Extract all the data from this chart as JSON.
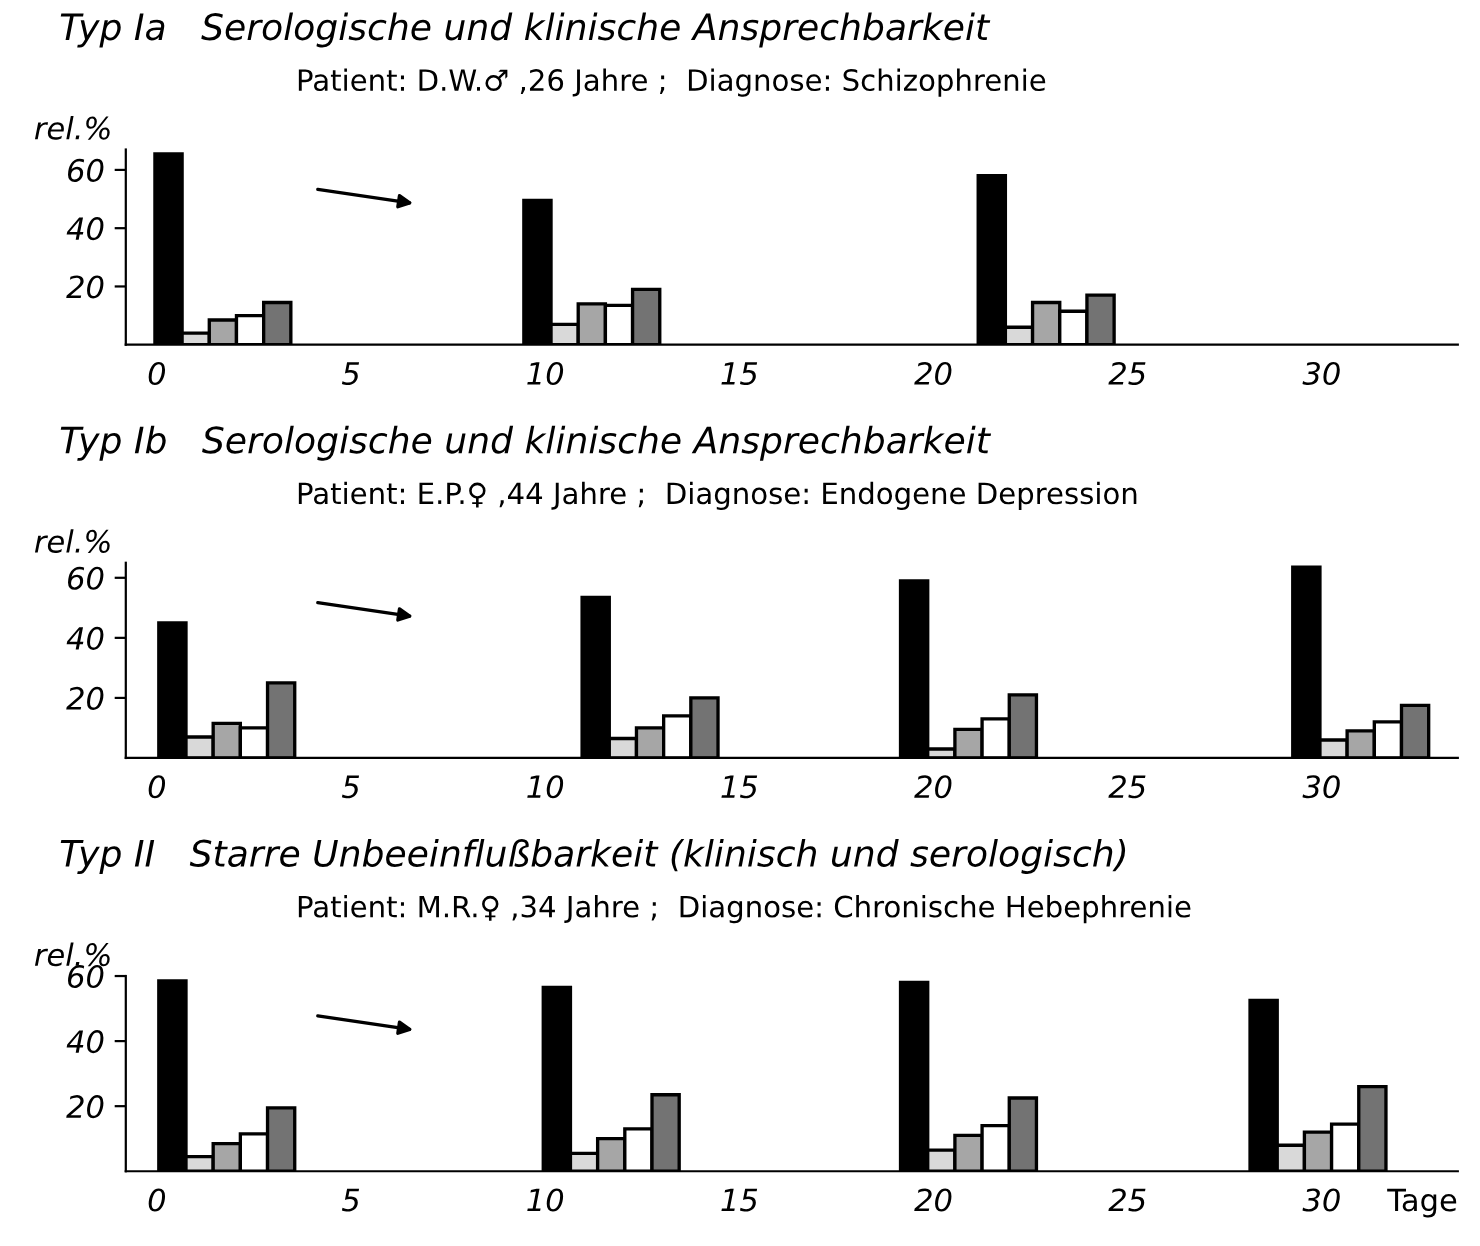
{
  "chart_data": [
    {
      "type": "bar",
      "title": "Typ Ia   Serologische und klinische Ansprechbarkeit",
      "subtitle": "Patient: D.W.♂ ,26 Jahre ;  Diagnose: Schizophrenie",
      "ylabel": "rel.%",
      "xlim": [
        -0.8,
        33.5
      ],
      "ylim": [
        0,
        67
      ],
      "xticks": [
        0,
        5,
        10,
        15,
        20,
        25,
        30
      ],
      "yticks": [
        20,
        40,
        60
      ],
      "grid": false,
      "legend": false,
      "series": [
        {
          "color": "#000000",
          "x": [
            0.3,
            9.8,
            21.5
          ],
          "values": [
            65.5,
            49.5,
            58
          ]
        },
        {
          "color": "#d9d9d9",
          "x": [
            1.0,
            10.5,
            22.2
          ],
          "values": [
            4,
            7,
            6
          ]
        },
        {
          "color": "#a6a6a6",
          "x": [
            1.7,
            11.2,
            22.9
          ],
          "values": [
            8.5,
            14,
            14.5
          ]
        },
        {
          "color": "#ffffff",
          "x": [
            2.4,
            11.9,
            23.6
          ],
          "values": [
            10,
            13.5,
            11.5
          ]
        },
        {
          "color": "#737373",
          "x": [
            3.1,
            12.6,
            24.3
          ],
          "values": [
            14.5,
            19,
            17
          ]
        }
      ]
    },
    {
      "type": "bar",
      "title": "Typ Ib   Serologische und klinische Ansprechbarkeit",
      "subtitle": "Patient: E.P.♀ ,44 Jahre ;  Diagnose: Endogene Depression",
      "ylabel": "rel.%",
      "xlim": [
        -0.8,
        33.5
      ],
      "ylim": [
        0,
        65
      ],
      "xticks": [
        0,
        5,
        10,
        15,
        20,
        25,
        30
      ],
      "yticks": [
        20,
        40,
        60
      ],
      "grid": false,
      "legend": false,
      "series": [
        {
          "color": "#000000",
          "x": [
            0.4,
            11.3,
            19.5,
            29.6
          ],
          "values": [
            45,
            53.5,
            59,
            63.5
          ]
        },
        {
          "color": "#d9d9d9",
          "x": [
            1.1,
            12.0,
            20.2,
            30.3
          ],
          "values": [
            7,
            6.5,
            3,
            6
          ]
        },
        {
          "color": "#a6a6a6",
          "x": [
            1.8,
            12.7,
            20.9,
            31.0
          ],
          "values": [
            11.5,
            10,
            9.5,
            9
          ]
        },
        {
          "color": "#ffffff",
          "x": [
            2.5,
            13.4,
            21.6,
            31.7
          ],
          "values": [
            10,
            14,
            13,
            12
          ]
        },
        {
          "color": "#737373",
          "x": [
            3.2,
            14.1,
            22.3,
            32.4
          ],
          "values": [
            25,
            20,
            21,
            17.5
          ]
        }
      ]
    },
    {
      "type": "bar",
      "title": "Typ II   Starre Unbeeinflußbarkeit (klinisch und serologisch)",
      "subtitle": "Patient: M.R.♀ ,34 Jahre ;  Diagnose: Chronische Hebephrenie",
      "ylabel": "rel.%",
      "xlabel": "Tage",
      "xlim": [
        -0.8,
        33.5
      ],
      "ylim": [
        0,
        60
      ],
      "xticks": [
        0,
        5,
        10,
        15,
        20,
        25,
        30
      ],
      "yticks": [
        20,
        40,
        60
      ],
      "grid": false,
      "legend": false,
      "series": [
        {
          "color": "#000000",
          "x": [
            0.4,
            10.3,
            19.5,
            28.5
          ],
          "values": [
            58.5,
            56.5,
            58,
            52.5
          ]
        },
        {
          "color": "#d9d9d9",
          "x": [
            1.1,
            11.0,
            20.2,
            29.2
          ],
          "values": [
            4.5,
            5.5,
            6.5,
            8
          ]
        },
        {
          "color": "#a6a6a6",
          "x": [
            1.8,
            11.7,
            20.9,
            29.9
          ],
          "values": [
            8.5,
            10,
            11,
            12
          ]
        },
        {
          "color": "#ffffff",
          "x": [
            2.5,
            12.4,
            21.6,
            30.6
          ],
          "values": [
            11.5,
            13,
            14,
            14.5
          ]
        },
        {
          "color": "#737373",
          "x": [
            3.2,
            13.1,
            22.3,
            31.3
          ],
          "values": [
            19.5,
            23.5,
            22.5,
            26
          ]
        }
      ]
    }
  ]
}
